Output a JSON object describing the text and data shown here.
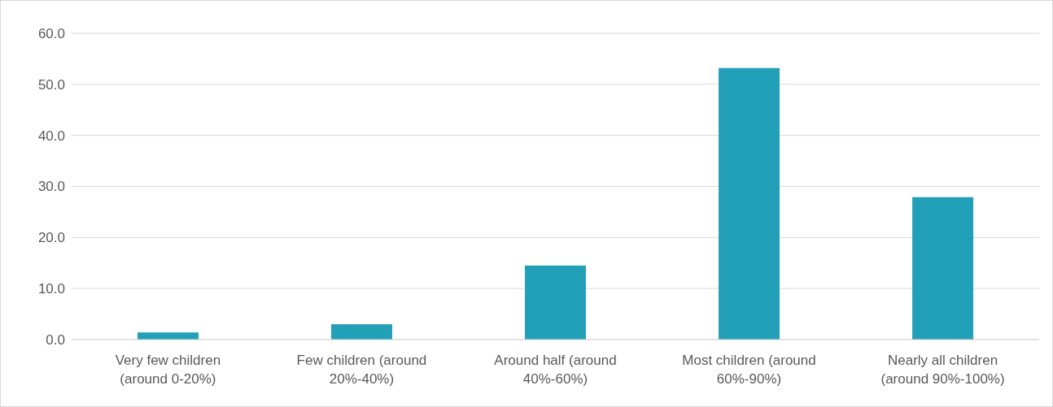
{
  "chart_data": {
    "type": "bar",
    "categories": [
      "Very few children (around 0-20%)",
      "Few children (around 20%-40%)",
      "Around half (around 40%-60%)",
      "Most children (around 60%-90%)",
      "Nearly all children (around 90%-100%)"
    ],
    "values": [
      1.4,
      3.0,
      14.5,
      53.2,
      27.9
    ],
    "color": "#21a0b8",
    "ylim": [
      0,
      60
    ],
    "yticks": [
      {
        "value": 0,
        "label": "0.0"
      },
      {
        "value": 10,
        "label": "10.0"
      },
      {
        "value": 20,
        "label": "20.0"
      },
      {
        "value": 30,
        "label": "30.0"
      },
      {
        "value": 40,
        "label": "40.0"
      },
      {
        "value": 50,
        "label": "50.0"
      },
      {
        "value": 60,
        "label": "60.0"
      }
    ],
    "grid": "y"
  }
}
